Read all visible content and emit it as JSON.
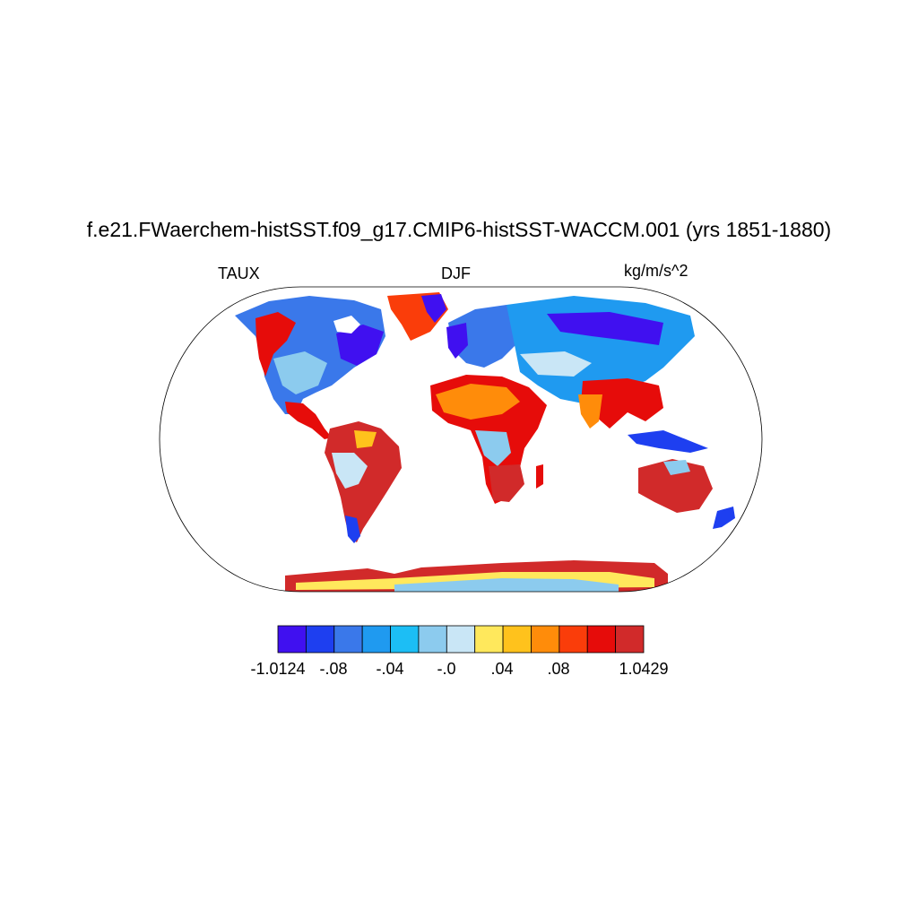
{
  "title": "f.e21.FWaerchem-histSST.f09_g17.CMIP6-histSST-WACCM.001 (yrs 1851-1880)",
  "left_label": "TAUX",
  "center_label": "DJF",
  "right_label": "kg/m/s^2",
  "colorbar": {
    "colors": [
      "#4010f0",
      "#1e3ff0",
      "#3a78ea",
      "#1f9af0",
      "#1cbef5",
      "#8ccbee",
      "#c9e6f6",
      "#ffe85c",
      "#ffc21c",
      "#ff8c0a",
      "#fa3d0a",
      "#e60c0a",
      "#d12a2a"
    ],
    "labels": [
      "-1.0124",
      "-.08",
      "-.04",
      "-.0",
      ".04",
      ".08",
      "1.0429"
    ]
  }
}
